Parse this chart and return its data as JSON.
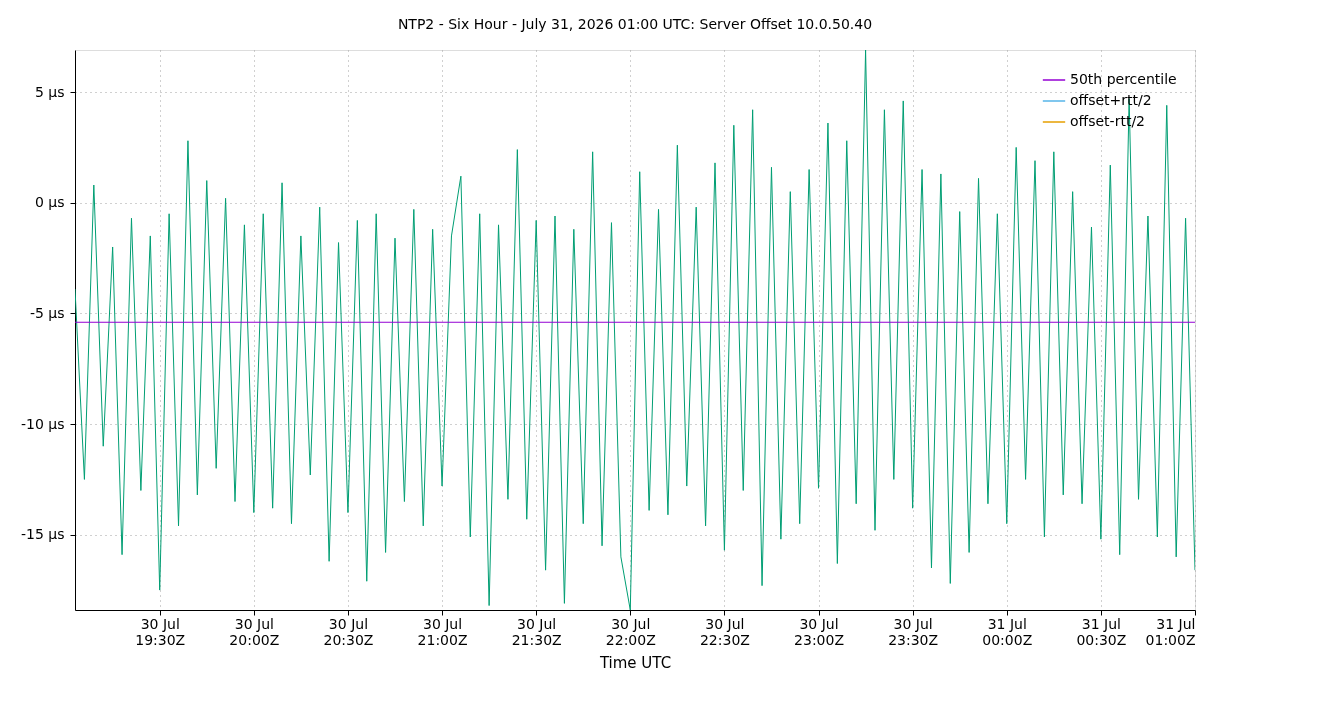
{
  "chart_data": {
    "type": "line",
    "title": "NTP2 - Six Hour - July 31, 2026 01:00 UTC: Server Offset 10.0.50.40",
    "xlabel": "Time UTC",
    "x": [
      "2026-07-30T19:03",
      "2026-07-30T19:06",
      "2026-07-30T19:09",
      "2026-07-30T19:12",
      "2026-07-30T19:15",
      "2026-07-30T19:18",
      "2026-07-30T19:21",
      "2026-07-30T19:24",
      "2026-07-30T19:27",
      "2026-07-30T19:30",
      "2026-07-30T19:33",
      "2026-07-30T19:36",
      "2026-07-30T19:39",
      "2026-07-30T19:42",
      "2026-07-30T19:45",
      "2026-07-30T19:48",
      "2026-07-30T19:51",
      "2026-07-30T19:54",
      "2026-07-30T19:57",
      "2026-07-30T20:00",
      "2026-07-30T20:03",
      "2026-07-30T20:06",
      "2026-07-30T20:09",
      "2026-07-30T20:12",
      "2026-07-30T20:15",
      "2026-07-30T20:18",
      "2026-07-30T20:21",
      "2026-07-30T20:24",
      "2026-07-30T20:27",
      "2026-07-30T20:30",
      "2026-07-30T20:33",
      "2026-07-30T20:36",
      "2026-07-30T20:39",
      "2026-07-30T20:42",
      "2026-07-30T20:45",
      "2026-07-30T20:48",
      "2026-07-30T20:51",
      "2026-07-30T20:54",
      "2026-07-30T20:57",
      "2026-07-30T21:00",
      "2026-07-30T21:03",
      "2026-07-30T21:06",
      "2026-07-30T21:09",
      "2026-07-30T21:12",
      "2026-07-30T21:15",
      "2026-07-30T21:18",
      "2026-07-30T21:21",
      "2026-07-30T21:24",
      "2026-07-30T21:27",
      "2026-07-30T21:30",
      "2026-07-30T21:33",
      "2026-07-30T21:36",
      "2026-07-30T21:39",
      "2026-07-30T21:42",
      "2026-07-30T21:45",
      "2026-07-30T21:48",
      "2026-07-30T21:51",
      "2026-07-30T21:54",
      "2026-07-30T21:57",
      "2026-07-30T22:00",
      "2026-07-30T22:03",
      "2026-07-30T22:06",
      "2026-07-30T22:09",
      "2026-07-30T22:12",
      "2026-07-30T22:15",
      "2026-07-30T22:18",
      "2026-07-30T22:21",
      "2026-07-30T22:24",
      "2026-07-30T22:27",
      "2026-07-30T22:30",
      "2026-07-30T22:33",
      "2026-07-30T22:36",
      "2026-07-30T22:39",
      "2026-07-30T22:42",
      "2026-07-30T22:45",
      "2026-07-30T22:48",
      "2026-07-30T22:51",
      "2026-07-30T22:54",
      "2026-07-30T22:57",
      "2026-07-30T23:00",
      "2026-07-30T23:03",
      "2026-07-30T23:06",
      "2026-07-30T23:09",
      "2026-07-30T23:12",
      "2026-07-30T23:15",
      "2026-07-30T23:18",
      "2026-07-30T23:21",
      "2026-07-30T23:24",
      "2026-07-30T23:27",
      "2026-07-30T23:30",
      "2026-07-30T23:33",
      "2026-07-30T23:36",
      "2026-07-30T23:39",
      "2026-07-30T23:42",
      "2026-07-30T23:45",
      "2026-07-30T23:48",
      "2026-07-30T23:51",
      "2026-07-30T23:54",
      "2026-07-30T23:57",
      "2026-07-31T00:00",
      "2026-07-31T00:03",
      "2026-07-31T00:06",
      "2026-07-31T00:09",
      "2026-07-31T00:12",
      "2026-07-31T00:15",
      "2026-07-31T00:18",
      "2026-07-31T00:21",
      "2026-07-31T00:24",
      "2026-07-31T00:27",
      "2026-07-31T00:30",
      "2026-07-31T00:33",
      "2026-07-31T00:36",
      "2026-07-31T00:39",
      "2026-07-31T00:42",
      "2026-07-31T00:45",
      "2026-07-31T00:48",
      "2026-07-31T00:51",
      "2026-07-31T00:54",
      "2026-07-31T00:57",
      "2026-07-31T01:00"
    ],
    "series": [
      {
        "color": "#009e73",
        "values": [
          -3.9,
          -12.5,
          0.8,
          -11,
          -2,
          -15.9,
          -0.7,
          -13,
          -1.5,
          -17.5,
          -0.5,
          -14.6,
          2.8,
          -13.2,
          1.0,
          -12,
          0.2,
          -13.5,
          -1,
          -14,
          -0.5,
          -13.8,
          0.9,
          -14.5,
          -1.5,
          -12.3,
          -0.2,
          -16.2,
          -1.8,
          -14,
          -0.8,
          -17.1,
          -0.5,
          -15.8,
          -1.6,
          -13.5,
          -0.3,
          -14.6,
          -1.2,
          -12.8,
          -1.5,
          1.2,
          -15.1,
          -0.5,
          -18.2,
          -1,
          -13.4,
          2.4,
          -14.3,
          -0.8,
          -16.6,
          -0.6,
          -18.1,
          -1.2,
          -14.5,
          2.3,
          -15.5,
          -0.9,
          -16,
          -18.4,
          1.4,
          -13.9,
          -0.3,
          -14.1,
          2.6,
          -12.8,
          -0.2,
          -14.6,
          1.8,
          -15.7,
          3.5,
          -13,
          4.2,
          -17.3,
          1.6,
          -15.2,
          0.5,
          -14.5,
          1.5,
          -12.9,
          3.6,
          -16.3,
          2.8,
          -13.6,
          6.9,
          -14.8,
          4.2,
          -12.5,
          4.6,
          -13.8,
          1.5,
          -16.5,
          1.3,
          -17.2,
          -0.4,
          -15.8,
          1.1,
          -13.6,
          -0.5,
          -14.5,
          2.5,
          -12.5,
          1.9,
          -15.1,
          2.3,
          -13.2,
          0.5,
          -13.6,
          -1.1,
          -15.2,
          1.7,
          -15.9,
          4.7,
          -13.4,
          -0.6,
          -15.1,
          4.4,
          -16,
          -0.7,
          -16.6
        ]
      },
      {
        "name": "50th percentile",
        "color": "#9400d3",
        "x": [
          "2026-07-30T19:03",
          "2026-07-31T01:00"
        ],
        "values": [
          -5.4,
          -5.4
        ]
      },
      {
        "name": "offset+rtt/2",
        "color": "#56b4e9",
        "values": [
          null,
          null,
          null,
          null,
          null,
          null,
          null,
          null,
          null,
          null,
          null,
          null,
          null,
          null,
          null,
          null,
          null,
          null,
          null,
          null,
          null,
          null,
          null,
          null,
          null,
          null,
          null,
          null,
          null,
          null,
          null,
          null,
          null,
          null,
          null,
          null,
          null,
          null,
          null,
          null,
          null,
          null,
          null,
          null,
          null,
          null,
          null,
          null,
          null,
          null,
          null,
          null,
          null,
          null,
          null,
          null,
          null,
          null,
          null,
          null,
          null,
          null,
          null,
          null,
          null,
          null,
          null,
          null,
          null,
          null,
          null,
          null,
          null,
          null,
          null,
          null,
          null,
          null,
          null,
          null,
          null,
          null,
          null,
          null,
          null,
          null,
          null,
          null,
          null,
          null,
          null,
          null,
          null,
          null,
          null,
          null,
          null,
          null,
          null,
          null,
          null,
          null,
          null,
          null,
          null,
          null,
          null,
          null,
          null,
          null,
          null,
          null,
          null,
          null,
          null,
          null,
          null,
          null,
          null,
          null
        ]
      },
      {
        "name": "offset-rtt/2",
        "color": "#e69f00",
        "values": [
          null,
          null,
          null,
          null,
          null,
          null,
          null,
          null,
          null,
          null,
          null,
          null,
          null,
          null,
          null,
          null,
          null,
          null,
          null,
          null,
          null,
          null,
          null,
          null,
          null,
          null,
          null,
          null,
          null,
          null,
          null,
          null,
          null,
          null,
          null,
          null,
          null,
          null,
          null,
          null,
          null,
          null,
          null,
          null,
          null,
          null,
          null,
          null,
          null,
          null,
          null,
          null,
          null,
          null,
          null,
          null,
          null,
          null,
          null,
          null,
          null,
          null,
          null,
          null,
          null,
          null,
          null,
          null,
          null,
          null,
          null,
          null,
          null,
          null,
          null,
          null,
          null,
          null,
          null,
          null,
          null,
          null,
          null,
          null,
          null,
          null,
          null,
          null,
          null,
          null,
          null,
          null,
          null,
          null,
          null,
          null,
          null,
          null,
          null,
          null,
          null,
          null,
          null,
          null,
          null,
          null,
          null,
          null,
          null,
          null,
          null,
          null,
          null,
          null,
          null,
          null,
          null,
          null,
          null,
          null
        ]
      }
    ],
    "xlim": [
      "2026-07-30T19:03",
      "2026-07-31T01:00"
    ],
    "xticks": [
      {
        "value": "2026-07-30T19:30",
        "label": "30 Jul\n19:30Z"
      },
      {
        "value": "2026-07-30T20:00",
        "label": "30 Jul\n20:00Z"
      },
      {
        "value": "2026-07-30T20:30",
        "label": "30 Jul\n20:30Z"
      },
      {
        "value": "2026-07-30T21:00",
        "label": "30 Jul\n21:00Z"
      },
      {
        "value": "2026-07-30T21:30",
        "label": "30 Jul\n21:30Z"
      },
      {
        "value": "2026-07-30T22:00",
        "label": "30 Jul\n22:00Z"
      },
      {
        "value": "2026-07-30T22:30",
        "label": "30 Jul\n22:30Z"
      },
      {
        "value": "2026-07-30T23:00",
        "label": "30 Jul\n23:00Z"
      },
      {
        "value": "2026-07-30T23:30",
        "label": "30 Jul\n23:30Z"
      },
      {
        "value": "2026-07-31T00:00",
        "label": "31 Jul\n00:00Z"
      },
      {
        "value": "2026-07-31T00:30",
        "label": "31 Jul\n00:30Z"
      },
      {
        "value": "2026-07-31T01:00",
        "label": "31 Jul\n01:00Z"
      }
    ],
    "ylim": [
      -18.4,
      6.9
    ],
    "yticks": [
      {
        "value": -15,
        "label": "-15 µs"
      },
      {
        "value": -10,
        "label": "-10 µs"
      },
      {
        "value": -5,
        "label": "-5 µs"
      },
      {
        "value": 0,
        "label": "0 µs"
      },
      {
        "value": 5,
        "label": "5 µs"
      }
    ],
    "grid": true,
    "legend": "top right",
    "marker": "none",
    "line_style": "solid"
  }
}
